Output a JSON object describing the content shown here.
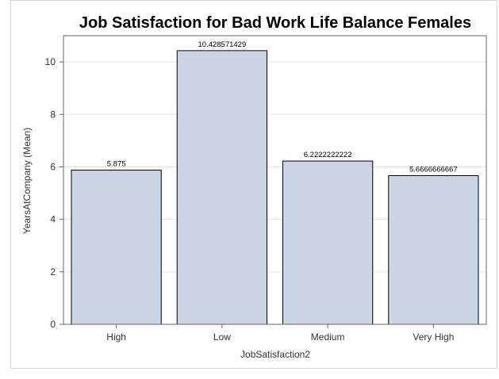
{
  "chart_data": {
    "type": "bar",
    "title": "Job Satisfaction for Bad Work Life Balance Females",
    "xlabel": "JobSatisfaction2",
    "ylabel": "YearsAtCompany (Mean)",
    "categories": [
      "High",
      "Low",
      "Medium",
      "Very High"
    ],
    "values": [
      5.875,
      10.428571429,
      6.2222222222,
      5.6666666667
    ],
    "value_labels": [
      "5.875",
      "10.428571429",
      "6.2222222222",
      "5.6666666667"
    ],
    "ylim": [
      0,
      11
    ],
    "yticks": [
      0,
      2,
      4,
      6,
      8,
      10
    ],
    "grid": true,
    "colors": {
      "bar_fill": "#cad5e5",
      "bar_stroke": "#000000",
      "grid": "#e4e4e4",
      "axis": "#666666"
    }
  }
}
